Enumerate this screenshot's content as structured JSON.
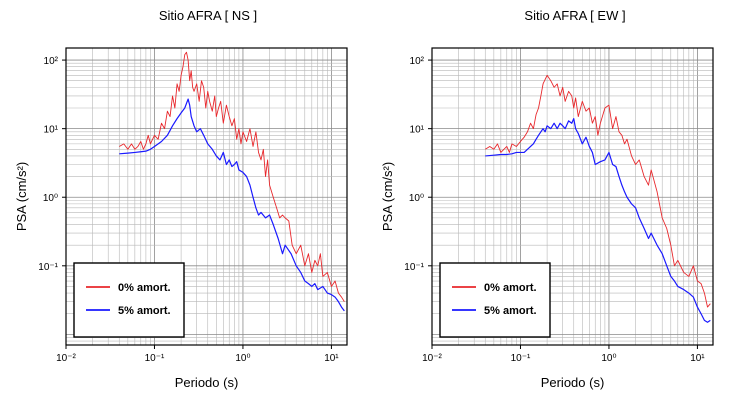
{
  "chart_data": [
    {
      "type": "line",
      "title": "Sitio AFRA [ NS ]",
      "xlabel": "Periodo (s)",
      "ylabel": "PSA (cm/s²)",
      "x_scale": "log",
      "y_scale": "log",
      "xlim": [
        0.01,
        15
      ],
      "ylim": [
        0.007,
        150
      ],
      "x_ticks": [
        "10⁻²",
        "10⁻¹",
        "10⁰",
        "10¹"
      ],
      "y_ticks": [
        "10⁻¹",
        "10⁰",
        "10¹",
        "10²"
      ],
      "grid": true,
      "legend": "bottom-left",
      "series": [
        {
          "name": "0% amort.",
          "color": "#e8282c",
          "x": [
            0.04,
            0.045,
            0.05,
            0.055,
            0.06,
            0.065,
            0.07,
            0.075,
            0.08,
            0.085,
            0.09,
            0.1,
            0.11,
            0.12,
            0.13,
            0.14,
            0.15,
            0.16,
            0.17,
            0.18,
            0.19,
            0.2,
            0.21,
            0.22,
            0.23,
            0.24,
            0.25,
            0.26,
            0.27,
            0.28,
            0.3,
            0.32,
            0.34,
            0.36,
            0.38,
            0.4,
            0.42,
            0.45,
            0.48,
            0.5,
            0.53,
            0.56,
            0.6,
            0.65,
            0.7,
            0.75,
            0.8,
            0.85,
            0.9,
            0.95,
            1.0,
            1.1,
            1.2,
            1.3,
            1.4,
            1.5,
            1.6,
            1.7,
            1.8,
            1.9,
            2.0,
            2.2,
            2.4,
            2.6,
            2.8,
            3.0,
            3.3,
            3.6,
            4.0,
            4.5,
            5.0,
            5.5,
            6.0,
            6.5,
            7.0,
            7.5,
            8.0,
            9.0,
            10.0,
            11.0,
            12.0,
            13.0,
            14.0
          ],
          "values": [
            5.5,
            6.0,
            5.0,
            6.0,
            5.0,
            5.5,
            6.5,
            5.0,
            6.0,
            8.0,
            6.0,
            8.0,
            7.0,
            12.0,
            10.0,
            18.0,
            15.0,
            30.0,
            20.0,
            45.0,
            35.0,
            60.0,
            80.0,
            120.0,
            130.0,
            100.0,
            50.0,
            70.0,
            40.0,
            35.0,
            45.0,
            25.0,
            50.0,
            40.0,
            20.0,
            35.0,
            25.0,
            18.0,
            30.0,
            15.0,
            20.0,
            25.0,
            12.0,
            22.0,
            15.0,
            11.0,
            14.0,
            7.0,
            10.0,
            6.0,
            9.0,
            6.5,
            10.0,
            5.5,
            9.0,
            4.5,
            3.5,
            5.0,
            2.0,
            3.5,
            1.5,
            1.0,
            0.7,
            0.5,
            0.55,
            0.5,
            0.45,
            0.2,
            0.15,
            0.2,
            0.1,
            0.15,
            0.08,
            0.12,
            0.1,
            0.15,
            0.07,
            0.08,
            0.05,
            0.06,
            0.04,
            0.035,
            0.03
          ]
        },
        {
          "name": "5% amort.",
          "color": "#1a1aff",
          "x": [
            0.04,
            0.05,
            0.06,
            0.07,
            0.08,
            0.09,
            0.1,
            0.12,
            0.14,
            0.16,
            0.18,
            0.2,
            0.22,
            0.24,
            0.25,
            0.26,
            0.28,
            0.3,
            0.33,
            0.36,
            0.4,
            0.45,
            0.5,
            0.55,
            0.6,
            0.65,
            0.7,
            0.75,
            0.8,
            0.85,
            0.9,
            1.0,
            1.1,
            1.2,
            1.3,
            1.4,
            1.5,
            1.6,
            1.8,
            2.0,
            2.2,
            2.5,
            2.8,
            3.0,
            3.5,
            4.0,
            4.5,
            5.0,
            5.5,
            6.0,
            6.5,
            7.0,
            8.0,
            9.0,
            10.0,
            11.0,
            12.0,
            13.0,
            14.0
          ],
          "values": [
            4.3,
            4.4,
            4.5,
            4.6,
            4.7,
            5.0,
            5.5,
            6.5,
            8.0,
            11.0,
            14.0,
            17.0,
            20.0,
            27.0,
            22.0,
            15.0,
            11.0,
            9.0,
            10.0,
            8.0,
            6.0,
            5.0,
            4.0,
            3.5,
            4.5,
            3.0,
            3.5,
            2.8,
            3.0,
            3.3,
            2.5,
            2.3,
            2.0,
            1.5,
            1.0,
            0.7,
            0.55,
            0.6,
            0.5,
            0.55,
            0.4,
            0.25,
            0.15,
            0.2,
            0.15,
            0.1,
            0.08,
            0.06,
            0.055,
            0.05,
            0.055,
            0.045,
            0.05,
            0.04,
            0.038,
            0.035,
            0.03,
            0.025,
            0.022
          ]
        }
      ]
    },
    {
      "type": "line",
      "title": "Sitio AFRA [ EW ]",
      "xlabel": "Periodo (s)",
      "ylabel": "PSA (cm/s²)",
      "x_scale": "log",
      "y_scale": "log",
      "xlim": [
        0.01,
        15
      ],
      "ylim": [
        0.007,
        150
      ],
      "x_ticks": [
        "10⁻²",
        "10⁻¹",
        "10⁰",
        "10¹"
      ],
      "y_ticks": [
        "10⁻¹",
        "10⁰",
        "10¹",
        "10²"
      ],
      "grid": true,
      "legend": "bottom-left",
      "series": [
        {
          "name": "0% amort.",
          "color": "#e8282c",
          "x": [
            0.04,
            0.045,
            0.05,
            0.055,
            0.06,
            0.065,
            0.07,
            0.075,
            0.08,
            0.09,
            0.1,
            0.11,
            0.12,
            0.13,
            0.14,
            0.15,
            0.16,
            0.17,
            0.18,
            0.2,
            0.22,
            0.24,
            0.26,
            0.28,
            0.3,
            0.32,
            0.35,
            0.38,
            0.4,
            0.42,
            0.45,
            0.5,
            0.55,
            0.6,
            0.65,
            0.7,
            0.75,
            0.8,
            0.9,
            1.0,
            1.1,
            1.2,
            1.3,
            1.4,
            1.5,
            1.6,
            1.8,
            2.0,
            2.2,
            2.5,
            2.8,
            3.0,
            3.5,
            4.0,
            4.5,
            5.0,
            5.5,
            6.0,
            7.0,
            8.0,
            9.0,
            10.0,
            11.0,
            12.0,
            13.0,
            14.0
          ],
          "values": [
            5.0,
            5.5,
            5.0,
            6.0,
            4.5,
            5.0,
            5.5,
            4.5,
            6.0,
            5.5,
            6.5,
            7.5,
            9.0,
            12.0,
            10.0,
            16.0,
            20.0,
            30.0,
            45.0,
            60.0,
            50.0,
            40.0,
            45.0,
            30.0,
            40.0,
            25.0,
            35.0,
            30.0,
            20.0,
            28.0,
            15.0,
            25.0,
            18.0,
            20.0,
            12.0,
            15.0,
            8.0,
            12.0,
            20.0,
            22.0,
            10.0,
            15.0,
            9.0,
            8.0,
            6.0,
            7.0,
            4.0,
            3.0,
            3.5,
            2.0,
            1.5,
            2.5,
            1.2,
            0.5,
            0.35,
            0.2,
            0.1,
            0.12,
            0.08,
            0.07,
            0.1,
            0.06,
            0.055,
            0.04,
            0.025,
            0.028
          ]
        },
        {
          "name": "5% amort.",
          "color": "#1a1aff",
          "x": [
            0.04,
            0.05,
            0.06,
            0.07,
            0.08,
            0.09,
            0.1,
            0.11,
            0.12,
            0.13,
            0.14,
            0.15,
            0.16,
            0.17,
            0.18,
            0.19,
            0.2,
            0.22,
            0.24,
            0.26,
            0.28,
            0.3,
            0.32,
            0.35,
            0.38,
            0.4,
            0.42,
            0.45,
            0.5,
            0.55,
            0.6,
            0.65,
            0.7,
            0.8,
            0.9,
            1.0,
            1.1,
            1.2,
            1.3,
            1.4,
            1.5,
            1.6,
            1.8,
            2.0,
            2.2,
            2.5,
            2.8,
            3.0,
            3.5,
            4.0,
            4.5,
            5.0,
            5.5,
            6.0,
            7.0,
            8.0,
            9.0,
            10.0,
            11.0,
            12.0,
            13.0,
            14.0
          ],
          "values": [
            4.0,
            4.1,
            4.2,
            4.2,
            4.3,
            4.5,
            4.5,
            4.5,
            5.0,
            5.5,
            6.0,
            7.0,
            8.0,
            9.0,
            10.0,
            9.0,
            11.0,
            10.0,
            12.0,
            10.0,
            12.0,
            11.0,
            10.0,
            13.0,
            12.0,
            14.0,
            10.0,
            8.5,
            6.0,
            7.5,
            5.5,
            4.5,
            3.0,
            3.3,
            3.5,
            4.5,
            3.0,
            2.8,
            2.0,
            1.5,
            1.2,
            1.0,
            0.8,
            0.7,
            0.5,
            0.35,
            0.25,
            0.3,
            0.2,
            0.15,
            0.1,
            0.07,
            0.06,
            0.05,
            0.045,
            0.04,
            0.035,
            0.025,
            0.02,
            0.016,
            0.015,
            0.016
          ]
        }
      ]
    }
  ]
}
